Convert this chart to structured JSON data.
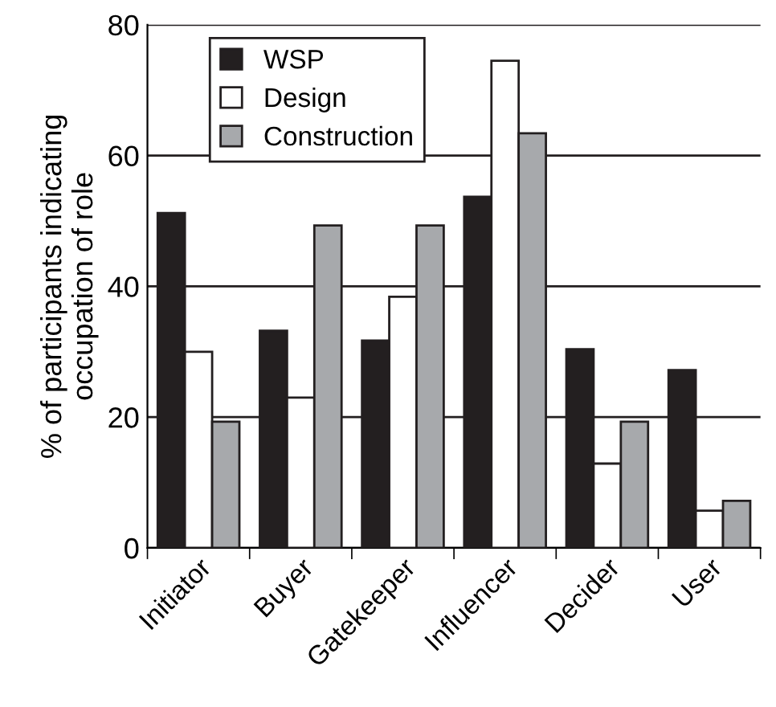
{
  "chart_data": {
    "type": "bar",
    "ylabel": "% of participants indicating\noccupation of role",
    "categories": [
      "Initiator",
      "Buyer",
      "Gatekeeper",
      "Influencer",
      "Decider",
      "User"
    ],
    "series": [
      {
        "name": "WSP",
        "color": "#231f20",
        "values": [
          51.2,
          33.2,
          31.7,
          53.7,
          30.4,
          27.2
        ]
      },
      {
        "name": "Design",
        "color": "#ffffff",
        "values": [
          30,
          23,
          38.4,
          74.5,
          12.9,
          5.7
        ]
      },
      {
        "name": "Construction",
        "color": "#a7a9ac",
        "values": [
          19.3,
          49.3,
          49.3,
          63.4,
          19.3,
          7.2
        ]
      }
    ],
    "ylim": [
      0,
      80
    ],
    "yticks": [
      0,
      20,
      40,
      60,
      80
    ],
    "grid": "y",
    "legend": "top left"
  }
}
